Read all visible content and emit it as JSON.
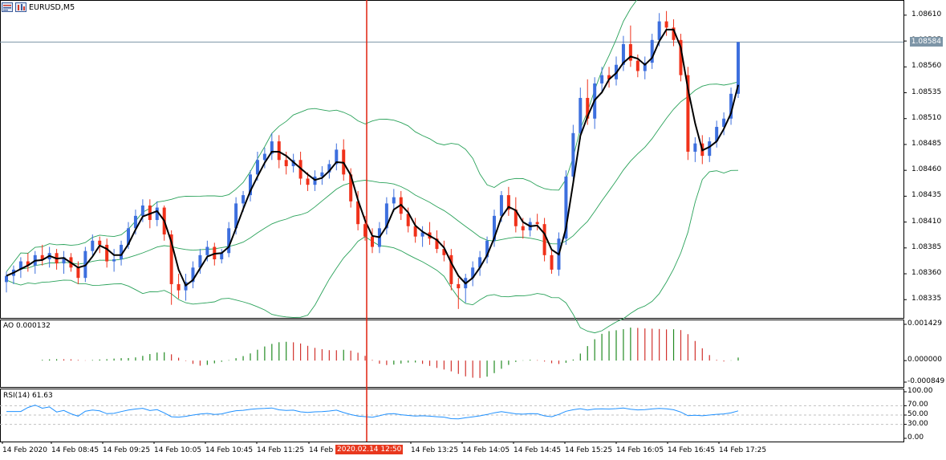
{
  "window": {
    "title": "EURUSD,M5",
    "title_icon": "chart-window-icon"
  },
  "main_chart": {
    "current_price_tag": "1.08584",
    "price_ticks": [
      "1.08610",
      "1.08585",
      "1.08560",
      "1.08535",
      "1.08510",
      "1.08485",
      "1.08460",
      "1.08435",
      "1.08410",
      "1.08385",
      "1.08360",
      "1.08335"
    ],
    "colors": {
      "bull": "#3d6fde",
      "bear": "#f0311a",
      "bands": "#2aa25a",
      "ma": "#000000",
      "crosshair": "#e0220f"
    },
    "candles": [
      [
        1.08352,
        1.08362,
        1.08342,
        1.08358
      ],
      [
        1.08358,
        1.08368,
        1.0835,
        1.08364
      ],
      [
        1.08364,
        1.08376,
        1.08356,
        1.08372
      ],
      [
        1.08372,
        1.0838,
        1.08362,
        1.08368
      ],
      [
        1.08368,
        1.08382,
        1.0836,
        1.08378
      ],
      [
        1.08378,
        1.08388,
        1.08368,
        1.08374
      ],
      [
        1.08374,
        1.08386,
        1.08366,
        1.0838
      ],
      [
        1.0838,
        1.08384,
        1.08364,
        1.0837
      ],
      [
        1.0837,
        1.08382,
        1.0836,
        1.08376
      ],
      [
        1.08376,
        1.0838,
        1.08362,
        1.08366
      ],
      [
        1.08366,
        1.08372,
        1.0835,
        1.08356
      ],
      [
        1.08356,
        1.08386,
        1.08352,
        1.08382
      ],
      [
        1.08382,
        1.08398,
        1.08378,
        1.08392
      ],
      [
        1.08392,
        1.08396,
        1.0838,
        1.08388
      ],
      [
        1.08388,
        1.08394,
        1.08366,
        1.08372
      ],
      [
        1.08372,
        1.08384,
        1.08362,
        1.08374
      ],
      [
        1.08374,
        1.08392,
        1.08368,
        1.08388
      ],
      [
        1.08388,
        1.0841,
        1.08384,
        1.08404
      ],
      [
        1.08404,
        1.08422,
        1.08398,
        1.08416
      ],
      [
        1.08416,
        1.08432,
        1.0841,
        1.08426
      ],
      [
        1.08426,
        1.08432,
        1.08404,
        1.08412
      ],
      [
        1.08412,
        1.0843,
        1.08406,
        1.08424
      ],
      [
        1.08424,
        1.08426,
        1.08392,
        1.08398
      ],
      [
        1.08398,
        1.08402,
        1.0833,
        1.0835
      ],
      [
        1.0835,
        1.0836,
        1.08336,
        1.08344
      ],
      [
        1.08344,
        1.0836,
        1.08334,
        1.08352
      ],
      [
        1.08352,
        1.08372,
        1.08346,
        1.08366
      ],
      [
        1.08366,
        1.08384,
        1.0836,
        1.08378
      ],
      [
        1.08378,
        1.08392,
        1.08372,
        1.08386
      ],
      [
        1.08386,
        1.0839,
        1.08368,
        1.08374
      ],
      [
        1.08374,
        1.08384,
        1.0837,
        1.0838
      ],
      [
        1.0838,
        1.0841,
        1.08376,
        1.08404
      ],
      [
        1.08404,
        1.08434,
        1.08398,
        1.08428
      ],
      [
        1.08428,
        1.0844,
        1.0842,
        1.08436
      ],
      [
        1.08436,
        1.0846,
        1.0843,
        1.08456
      ],
      [
        1.08456,
        1.08478,
        1.0845,
        1.0847
      ],
      [
        1.0847,
        1.08482,
        1.08462,
        1.08476
      ],
      [
        1.08476,
        1.08496,
        1.0847,
        1.08488
      ],
      [
        1.08488,
        1.08494,
        1.08462,
        1.0847
      ],
      [
        1.0847,
        1.08478,
        1.08456,
        1.08464
      ],
      [
        1.08464,
        1.08476,
        1.08458,
        1.0847
      ],
      [
        1.0847,
        1.08478,
        1.08446,
        1.08452
      ],
      [
        1.08452,
        1.08458,
        1.0844,
        1.08446
      ],
      [
        1.08446,
        1.0846,
        1.0844,
        1.08454
      ],
      [
        1.08454,
        1.08464,
        1.08446,
        1.08458
      ],
      [
        1.08458,
        1.0847,
        1.08452,
        1.08466
      ],
      [
        1.08466,
        1.08486,
        1.0846,
        1.0848
      ],
      [
        1.0848,
        1.0849,
        1.0845,
        1.08456
      ],
      [
        1.08456,
        1.08462,
        1.08424,
        1.0843
      ],
      [
        1.0843,
        1.0844,
        1.08402,
        1.08408
      ],
      [
        1.08408,
        1.08416,
        1.08392,
        1.08396
      ],
      [
        1.08396,
        1.08404,
        1.0838,
        1.08386
      ],
      [
        1.08386,
        1.0841,
        1.0838,
        1.08404
      ],
      [
        1.08404,
        1.08434,
        1.08398,
        1.08428
      ],
      [
        1.08428,
        1.08442,
        1.0842,
        1.08434
      ],
      [
        1.08434,
        1.0844,
        1.08412,
        1.08418
      ],
      [
        1.08418,
        1.08424,
        1.084,
        1.08406
      ],
      [
        1.08406,
        1.08414,
        1.0839,
        1.08396
      ],
      [
        1.08396,
        1.08406,
        1.08386,
        1.084
      ],
      [
        1.084,
        1.0841,
        1.08388,
        1.08394
      ],
      [
        1.08394,
        1.08402,
        1.0838,
        1.08384
      ],
      [
        1.08384,
        1.08392,
        1.08372,
        1.08378
      ],
      [
        1.08378,
        1.08384,
        1.08344,
        1.0835
      ],
      [
        1.0835,
        1.08356,
        1.08326,
        1.08346
      ],
      [
        1.08346,
        1.0836,
        1.08332,
        1.08356
      ],
      [
        1.08356,
        1.08372,
        1.08348,
        1.08366
      ],
      [
        1.08366,
        1.08382,
        1.08358,
        1.08376
      ],
      [
        1.08376,
        1.08396,
        1.0837,
        1.08392
      ],
      [
        1.08392,
        1.08422,
        1.08386,
        1.08416
      ],
      [
        1.08416,
        1.0844,
        1.0841,
        1.08436
      ],
      [
        1.08436,
        1.08444,
        1.08416,
        1.08422
      ],
      [
        1.08422,
        1.08434,
        1.084,
        1.08406
      ],
      [
        1.08406,
        1.08414,
        1.08394,
        1.08402
      ],
      [
        1.08402,
        1.08414,
        1.08396,
        1.0841
      ],
      [
        1.0841,
        1.08418,
        1.08402,
        1.08408
      ],
      [
        1.08408,
        1.08414,
        1.08372,
        1.08378
      ],
      [
        1.08378,
        1.08384,
        1.0836,
        1.08364
      ],
      [
        1.08364,
        1.084,
        1.08358,
        1.08394
      ],
      [
        1.08394,
        1.0846,
        1.08388,
        1.08454
      ],
      [
        1.08454,
        1.08504,
        1.08448,
        1.08496
      ],
      [
        1.08496,
        1.0854,
        1.0849,
        1.0853
      ],
      [
        1.0853,
        1.08548,
        1.08504,
        1.0851
      ],
      [
        1.0851,
        1.0855,
        1.085,
        1.08544
      ],
      [
        1.08544,
        1.0856,
        1.08536,
        1.08552
      ],
      [
        1.08552,
        1.0856,
        1.0854,
        1.08548
      ],
      [
        1.08548,
        1.0857,
        1.08542,
        1.08562
      ],
      [
        1.08562,
        1.0859,
        1.08556,
        1.08582
      ],
      [
        1.08582,
        1.086,
        1.0856,
        1.08566
      ],
      [
        1.08566,
        1.08572,
        1.0855,
        1.08556
      ],
      [
        1.08556,
        1.0857,
        1.08548,
        1.08564
      ],
      [
        1.08564,
        1.08592,
        1.08558,
        1.08586
      ],
      [
        1.08586,
        1.08612,
        1.0858,
        1.08604
      ],
      [
        1.08604,
        1.08614,
        1.0859,
        1.08598
      ],
      [
        1.08598,
        1.08606,
        1.0858,
        1.08586
      ],
      [
        1.08586,
        1.08592,
        1.08546,
        1.08552
      ],
      [
        1.08552,
        1.0856,
        1.0847,
        1.08478
      ],
      [
        1.08478,
        1.08492,
        1.08468,
        1.08486
      ],
      [
        1.08486,
        1.08494,
        1.08466,
        1.08474
      ],
      [
        1.08474,
        1.08492,
        1.08468,
        1.08488
      ],
      [
        1.08488,
        1.08508,
        1.08482,
        1.08502
      ],
      [
        1.08502,
        1.08516,
        1.08494,
        1.0851
      ],
      [
        1.0851,
        1.0854,
        1.08504,
        1.08534
      ],
      [
        1.08534,
        1.08584,
        1.0853,
        1.08584
      ]
    ]
  },
  "ao_panel": {
    "label": "AO 0.000132",
    "ticks": [
      "0.001429",
      "0.000000",
      "-0.000849"
    ],
    "colors": {
      "up": "#228b22",
      "down": "#d2322d"
    }
  },
  "rsi_panel": {
    "label": "RSI(14) 61.63",
    "ticks": [
      "100.00",
      "70.00",
      "50.00",
      "30.00",
      "0.00"
    ],
    "color": "#1e90ff"
  },
  "time_axis": {
    "labels": [
      "14 Feb 2020",
      "14 Feb 08:45",
      "14 Feb 09:25",
      "14 Feb 10:05",
      "14 Feb 10:45",
      "14 Feb 11:25",
      "14 Feb",
      "14 Feb 13:25",
      "14 Feb 14:05",
      "14 Feb 14:45",
      "14 Feb 15:25",
      "14 Feb 16:05",
      "14 Feb 16:45",
      "14 Feb 17:25"
    ],
    "crosshair_time": "2020.02.14 12:50",
    "hidden_label_tail": "5"
  }
}
